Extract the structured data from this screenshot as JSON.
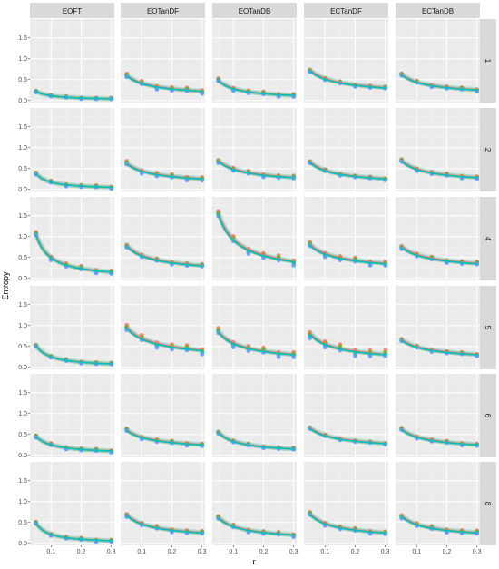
{
  "chart_data": {
    "type": "scatter",
    "xlabel": "r",
    "ylabel": "Entropy",
    "xlim": [
      0.03,
      0.31
    ],
    "ylim": [
      -0.05,
      1.95
    ],
    "xticks": [
      "0.1",
      "0.2",
      "0.3"
    ],
    "yticks": [
      "0.0",
      "0.5",
      "1.0",
      "1.5"
    ],
    "grid": true,
    "columns": [
      "EOFT",
      "EOTanDF",
      "EOTanDB",
      "ECTanDF",
      "ECTanDB"
    ],
    "rows": [
      "1",
      "2",
      "4",
      "5",
      "6",
      "8"
    ],
    "x": [
      0.05,
      0.1,
      0.15,
      0.2,
      0.25,
      0.3
    ],
    "series_colors": [
      "#F8766D",
      "#7CAE00",
      "#00BFC4",
      "#619CFF"
    ],
    "cells": [
      [
        {
          "y0": 0.22,
          "y1": 0.04,
          "spread": 0.04
        },
        {
          "y0": 0.6,
          "y1": 0.22,
          "spread": 0.1
        },
        {
          "y0": 0.48,
          "y1": 0.12,
          "spread": 0.08
        },
        {
          "y0": 0.72,
          "y1": 0.3,
          "spread": 0.06
        },
        {
          "y0": 0.62,
          "y1": 0.25,
          "spread": 0.06
        }
      ],
      [
        {
          "y0": 0.38,
          "y1": 0.05,
          "spread": 0.06
        },
        {
          "y0": 0.62,
          "y1": 0.25,
          "spread": 0.1
        },
        {
          "y0": 0.68,
          "y1": 0.28,
          "spread": 0.08
        },
        {
          "y0": 0.65,
          "y1": 0.25,
          "spread": 0.05
        },
        {
          "y0": 0.68,
          "y1": 0.28,
          "spread": 0.07
        }
      ],
      [
        {
          "y0": 1.05,
          "y1": 0.15,
          "spread": 0.1
        },
        {
          "y0": 0.78,
          "y1": 0.3,
          "spread": 0.07
        },
        {
          "y0": 1.55,
          "y1": 0.4,
          "spread": 0.15
        },
        {
          "y0": 0.8,
          "y1": 0.35,
          "spread": 0.12
        },
        {
          "y0": 0.75,
          "y1": 0.35,
          "spread": 0.08
        }
      ],
      [
        {
          "y0": 0.52,
          "y1": 0.08,
          "spread": 0.05
        },
        {
          "y0": 0.95,
          "y1": 0.4,
          "spread": 0.15
        },
        {
          "y0": 0.85,
          "y1": 0.3,
          "spread": 0.15
        },
        {
          "y0": 0.8,
          "y1": 0.3,
          "spread": 0.18
        },
        {
          "y0": 0.65,
          "y1": 0.3,
          "spread": 0.06
        }
      ],
      [
        {
          "y0": 0.45,
          "y1": 0.1,
          "spread": 0.06
        },
        {
          "y0": 0.6,
          "y1": 0.25,
          "spread": 0.07
        },
        {
          "y0": 0.55,
          "y1": 0.15,
          "spread": 0.05
        },
        {
          "y0": 0.65,
          "y1": 0.28,
          "spread": 0.04
        },
        {
          "y0": 0.62,
          "y1": 0.25,
          "spread": 0.06
        }
      ],
      [
        {
          "y0": 0.48,
          "y1": 0.06,
          "spread": 0.06
        },
        {
          "y0": 0.68,
          "y1": 0.25,
          "spread": 0.08
        },
        {
          "y0": 0.62,
          "y1": 0.2,
          "spread": 0.08
        },
        {
          "y0": 0.7,
          "y1": 0.25,
          "spread": 0.08
        },
        {
          "y0": 0.65,
          "y1": 0.25,
          "spread": 0.09
        }
      ]
    ]
  }
}
